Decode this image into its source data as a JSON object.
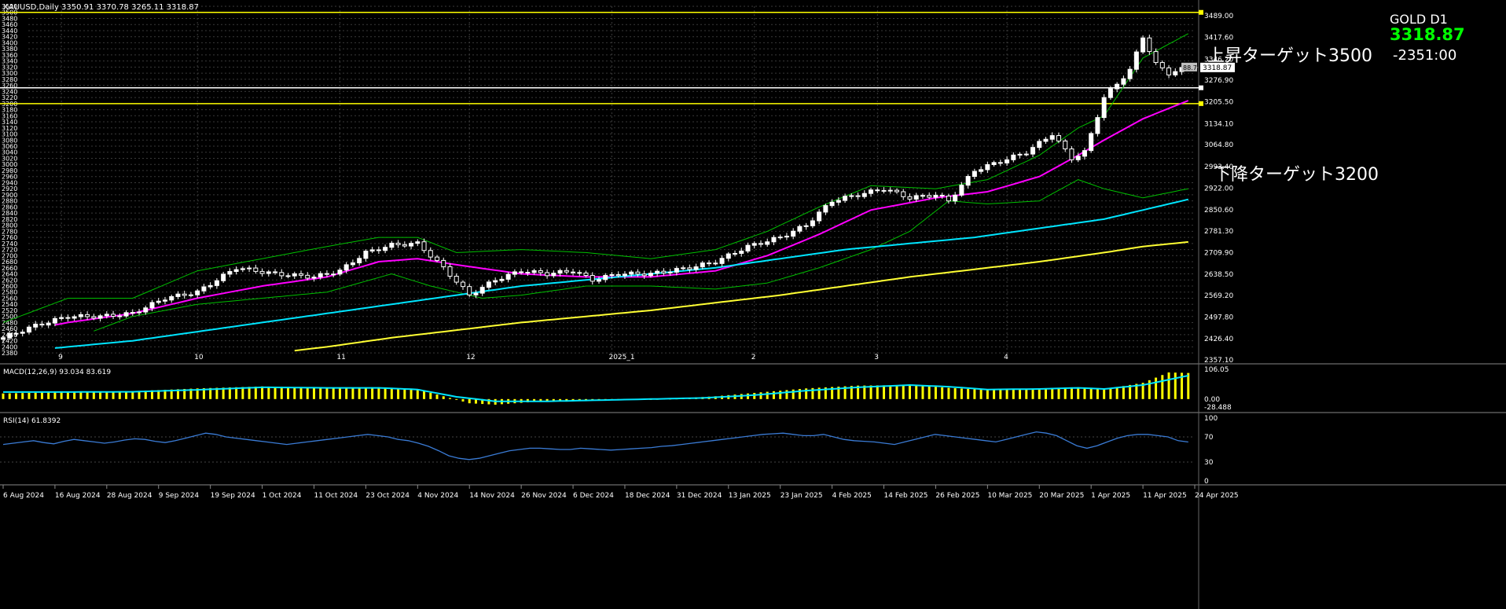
{
  "header": "XAUUSD,Daily  3350.91 3370.78 3265.11 3318.87",
  "symbol_tf": "GOLD   D1",
  "last_price": "3318.87",
  "countdown": "-2351:00",
  "annotations": {
    "up": "上昇ターゲット3500",
    "down": "下降ターゲット3200"
  },
  "price_tag": "88.7",
  "colors": {
    "background": "#000000",
    "bull": "#ffffff",
    "bear": "#ffffff",
    "bb": "#00c000",
    "ma20": "#ff00ff",
    "ma100": "#00e5ff",
    "ma200": "#ffff33",
    "hline": "#ffff00",
    "hline_white": "#ffffff",
    "macd_hist": "#ffff00",
    "macd_signal": "#00e5ff",
    "rsi": "#3a7bd5",
    "last_price": "#00ff00"
  },
  "chart_data": [
    {
      "type": "candlestick",
      "title": "XAUUSD,Daily",
      "ylim": [
        2357.1,
        3520
      ],
      "y_ticks_left": [
        2380,
        2400,
        2420,
        2440,
        2460,
        2480,
        2500,
        2520,
        2540,
        2560,
        2580,
        2600,
        2620,
        2640,
        2660,
        2680,
        2700,
        2720,
        2740,
        2760,
        2780,
        2800,
        2820,
        2840,
        2860,
        2880,
        2900,
        2920,
        2940,
        2960,
        2980,
        3000,
        3020,
        3040,
        3060,
        3080,
        3100,
        3120,
        3140,
        3160,
        3180,
        3200,
        3220,
        3240,
        3260,
        3280,
        3300,
        3320,
        3340,
        3360,
        3380,
        3400,
        3420,
        3440,
        3460,
        3480,
        3500,
        3520
      ],
      "y_ticks_right": [
        3489.0,
        3417.6,
        3346.2,
        3276.9,
        3205.5,
        3134.1,
        3064.8,
        2993.4,
        2922.0,
        2850.6,
        2781.3,
        2709.9,
        2638.5,
        2569.2,
        2497.8,
        2426.4,
        2357.1
      ],
      "top_month_labels": [
        {
          "label": "9",
          "i": 9
        },
        {
          "label": "10",
          "i": 30
        },
        {
          "label": "11",
          "i": 52
        },
        {
          "label": "12",
          "i": 72
        },
        {
          "label": "2025_1",
          "i": 94
        },
        {
          "label": "2",
          "i": 116
        },
        {
          "label": "3",
          "i": 135
        },
        {
          "label": "4",
          "i": 155
        }
      ],
      "x_labels": [
        {
          "label": "6 Aug 2024",
          "i": 0
        },
        {
          "label": "16 Aug 2024",
          "i": 8
        },
        {
          "label": "28 Aug 2024",
          "i": 16
        },
        {
          "label": "9 Sep 2024",
          "i": 24
        },
        {
          "label": "19 Sep 2024",
          "i": 32
        },
        {
          "label": "1 Oct 2024",
          "i": 40
        },
        {
          "label": "11 Oct 2024",
          "i": 48
        },
        {
          "label": "23 Oct 2024",
          "i": 56
        },
        {
          "label": "4 Nov 2024",
          "i": 64
        },
        {
          "label": "14 Nov 2024",
          "i": 72
        },
        {
          "label": "26 Nov 2024",
          "i": 80
        },
        {
          "label": "6 Dec 2024",
          "i": 88
        },
        {
          "label": "18 Dec 2024",
          "i": 96
        },
        {
          "label": "31 Dec 2024",
          "i": 104
        },
        {
          "label": "13 Jan 2025",
          "i": 112
        },
        {
          "label": "23 Jan 2025",
          "i": 120
        },
        {
          "label": "4 Feb 2025",
          "i": 128
        },
        {
          "label": "14 Feb 2025",
          "i": 136
        },
        {
          "label": "26 Feb 2025",
          "i": 144
        },
        {
          "label": "10 Mar 2025",
          "i": 152
        },
        {
          "label": "20 Mar 2025",
          "i": 160
        },
        {
          "label": "1 Apr 2025",
          "i": 168
        },
        {
          "label": "11 Apr 2025",
          "i": 176
        },
        {
          "label": "24 Apr 2025",
          "i": 184
        }
      ],
      "horizontal_lines": [
        {
          "price": 3500,
          "color": "#ffff00"
        },
        {
          "price": 3252,
          "color": "#ffffff"
        },
        {
          "price": 3200,
          "color": "#ffff00"
        }
      ],
      "close_path": [
        [
          0,
          2430
        ],
        [
          5,
          2470
        ],
        [
          10,
          2500
        ],
        [
          15,
          2500
        ],
        [
          20,
          2510
        ],
        [
          25,
          2560
        ],
        [
          30,
          2580
        ],
        [
          33,
          2620
        ],
        [
          36,
          2660
        ],
        [
          42,
          2640
        ],
        [
          48,
          2630
        ],
        [
          52,
          2650
        ],
        [
          56,
          2710
        ],
        [
          60,
          2735
        ],
        [
          64,
          2740
        ],
        [
          66,
          2700
        ],
        [
          68,
          2660
        ],
        [
          72,
          2570
        ],
        [
          76,
          2620
        ],
        [
          80,
          2650
        ],
        [
          84,
          2640
        ],
        [
          88,
          2650
        ],
        [
          91,
          2620
        ],
        [
          95,
          2640
        ],
        [
          100,
          2640
        ],
        [
          106,
          2660
        ],
        [
          110,
          2680
        ],
        [
          115,
          2730
        ],
        [
          120,
          2760
        ],
        [
          124,
          2800
        ],
        [
          128,
          2880
        ],
        [
          132,
          2900
        ],
        [
          136,
          2920
        ],
        [
          140,
          2890
        ],
        [
          144,
          2900
        ],
        [
          146,
          2880
        ],
        [
          150,
          2980
        ],
        [
          154,
          3010
        ],
        [
          158,
          3040
        ],
        [
          162,
          3100
        ],
        [
          165,
          3020
        ],
        [
          167,
          3040
        ],
        [
          170,
          3220
        ],
        [
          174,
          3310
        ],
        [
          176,
          3420
        ],
        [
          178,
          3330
        ],
        [
          180,
          3300
        ],
        [
          183,
          3318.87
        ]
      ],
      "bb_upper": [
        [
          0,
          2480
        ],
        [
          10,
          2560
        ],
        [
          20,
          2560
        ],
        [
          30,
          2650
        ],
        [
          40,
          2690
        ],
        [
          50,
          2730
        ],
        [
          58,
          2760
        ],
        [
          64,
          2760
        ],
        [
          70,
          2710
        ],
        [
          80,
          2720
        ],
        [
          90,
          2710
        ],
        [
          100,
          2690
        ],
        [
          110,
          2720
        ],
        [
          118,
          2780
        ],
        [
          126,
          2860
        ],
        [
          134,
          2930
        ],
        [
          144,
          2920
        ],
        [
          152,
          2950
        ],
        [
          160,
          3030
        ],
        [
          166,
          3120
        ],
        [
          170,
          3160
        ],
        [
          176,
          3350
        ],
        [
          183,
          3430
        ]
      ],
      "bb_lower": [
        [
          0,
          2400
        ],
        [
          10,
          2420
        ],
        [
          20,
          2500
        ],
        [
          30,
          2540
        ],
        [
          40,
          2560
        ],
        [
          50,
          2580
        ],
        [
          60,
          2640
        ],
        [
          66,
          2600
        ],
        [
          74,
          2560
        ],
        [
          80,
          2570
        ],
        [
          90,
          2600
        ],
        [
          100,
          2600
        ],
        [
          110,
          2590
        ],
        [
          118,
          2610
        ],
        [
          126,
          2660
        ],
        [
          134,
          2720
        ],
        [
          140,
          2780
        ],
        [
          146,
          2880
        ],
        [
          152,
          2870
        ],
        [
          160,
          2880
        ],
        [
          166,
          2950
        ],
        [
          170,
          2920
        ],
        [
          176,
          2890
        ],
        [
          183,
          2920
        ]
      ],
      "ma20": [
        [
          0,
          2440
        ],
        [
          10,
          2480
        ],
        [
          20,
          2510
        ],
        [
          30,
          2560
        ],
        [
          40,
          2600
        ],
        [
          50,
          2630
        ],
        [
          58,
          2680
        ],
        [
          64,
          2690
        ],
        [
          70,
          2670
        ],
        [
          80,
          2640
        ],
        [
          90,
          2630
        ],
        [
          100,
          2630
        ],
        [
          110,
          2650
        ],
        [
          118,
          2700
        ],
        [
          126,
          2770
        ],
        [
          134,
          2850
        ],
        [
          144,
          2890
        ],
        [
          152,
          2910
        ],
        [
          160,
          2960
        ],
        [
          166,
          3030
        ],
        [
          170,
          3080
        ],
        [
          176,
          3150
        ],
        [
          183,
          3210
        ]
      ],
      "ma100": [
        [
          0,
          2380
        ],
        [
          10,
          2400
        ],
        [
          20,
          2420
        ],
        [
          30,
          2450
        ],
        [
          40,
          2480
        ],
        [
          50,
          2510
        ],
        [
          60,
          2540
        ],
        [
          70,
          2570
        ],
        [
          80,
          2600
        ],
        [
          90,
          2620
        ],
        [
          100,
          2640
        ],
        [
          110,
          2660
        ],
        [
          120,
          2690
        ],
        [
          130,
          2720
        ],
        [
          140,
          2740
        ],
        [
          150,
          2760
        ],
        [
          160,
          2790
        ],
        [
          170,
          2820
        ],
        [
          176,
          2850
        ],
        [
          183,
          2885
        ]
      ],
      "ma200": [
        [
          40,
          2375
        ],
        [
          50,
          2400
        ],
        [
          60,
          2430
        ],
        [
          70,
          2455
        ],
        [
          80,
          2480
        ],
        [
          90,
          2500
        ],
        [
          100,
          2520
        ],
        [
          110,
          2545
        ],
        [
          120,
          2570
        ],
        [
          130,
          2600
        ],
        [
          140,
          2630
        ],
        [
          150,
          2655
        ],
        [
          160,
          2680
        ],
        [
          170,
          2710
        ],
        [
          176,
          2730
        ],
        [
          183,
          2745
        ]
      ]
    },
    {
      "type": "bar",
      "title": "MACD(12,26,9) 93.034 83.619",
      "y_ticks_right": [
        106.05,
        0.0,
        -28.488
      ],
      "ylim": [
        -28.488,
        106.05
      ],
      "hist_path": [
        [
          0,
          20
        ],
        [
          10,
          25
        ],
        [
          20,
          28
        ],
        [
          30,
          38
        ],
        [
          40,
          45
        ],
        [
          50,
          40
        ],
        [
          58,
          42
        ],
        [
          64,
          35
        ],
        [
          68,
          10
        ],
        [
          72,
          -15
        ],
        [
          76,
          -20
        ],
        [
          82,
          -10
        ],
        [
          90,
          -5
        ],
        [
          96,
          -2
        ],
        [
          104,
          2
        ],
        [
          110,
          10
        ],
        [
          116,
          22
        ],
        [
          124,
          38
        ],
        [
          132,
          48
        ],
        [
          140,
          50
        ],
        [
          146,
          40
        ],
        [
          152,
          32
        ],
        [
          160,
          38
        ],
        [
          166,
          42
        ],
        [
          170,
          35
        ],
        [
          176,
          58
        ],
        [
          180,
          95
        ],
        [
          183,
          93.034
        ]
      ],
      "signal_path": [
        [
          0,
          25
        ],
        [
          10,
          25
        ],
        [
          20,
          26
        ],
        [
          30,
          33
        ],
        [
          40,
          42
        ],
        [
          50,
          40
        ],
        [
          58,
          40
        ],
        [
          64,
          34
        ],
        [
          70,
          8
        ],
        [
          76,
          -8
        ],
        [
          84,
          -8
        ],
        [
          92,
          -4
        ],
        [
          100,
          0
        ],
        [
          108,
          4
        ],
        [
          116,
          14
        ],
        [
          124,
          30
        ],
        [
          132,
          42
        ],
        [
          140,
          50
        ],
        [
          146,
          44
        ],
        [
          152,
          34
        ],
        [
          160,
          36
        ],
        [
          166,
          40
        ],
        [
          170,
          36
        ],
        [
          176,
          50
        ],
        [
          183,
          83.619
        ]
      ]
    },
    {
      "type": "line",
      "title": "RSI(14) 61.8392",
      "ylim": [
        0,
        100
      ],
      "y_ticks_right": [
        100,
        70,
        30,
        0
      ],
      "values": [
        58,
        60,
        62,
        64,
        61,
        59,
        63,
        66,
        64,
        62,
        60,
        62,
        65,
        67,
        66,
        63,
        61,
        64,
        68,
        72,
        76,
        74,
        70,
        68,
        66,
        64,
        62,
        60,
        58,
        60,
        62,
        64,
        66,
        68,
        70,
        72,
        74,
        72,
        70,
        66,
        64,
        60,
        55,
        48,
        40,
        36,
        34,
        36,
        40,
        44,
        48,
        50,
        52,
        52,
        51,
        50,
        50,
        52,
        51,
        50,
        49,
        50,
        51,
        52,
        53,
        55,
        56,
        58,
        60,
        62,
        64,
        66,
        68,
        70,
        72,
        74,
        75,
        76,
        74,
        72,
        72,
        74,
        70,
        66,
        64,
        63,
        62,
        60,
        58,
        62,
        66,
        70,
        74,
        72,
        70,
        68,
        66,
        64,
        62,
        66,
        70,
        74,
        78,
        76,
        72,
        64,
        56,
        52,
        56,
        62,
        68,
        72,
        74,
        74,
        72,
        70,
        64,
        61.8392
      ]
    }
  ]
}
